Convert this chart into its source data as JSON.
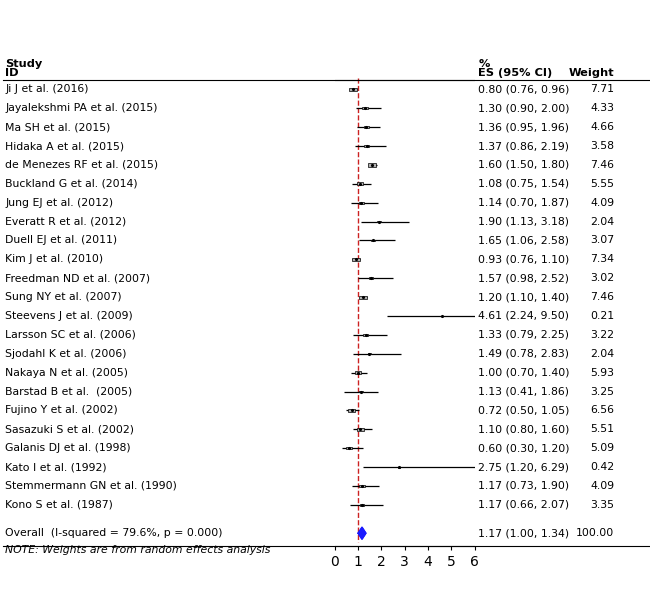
{
  "studies": [
    {
      "label": "Ji J et al. (2016)",
      "es": 0.8,
      "ci_lo": 0.76,
      "ci_hi": 0.96,
      "weight": 7.71
    },
    {
      "label": "Jayalekshmi PA et al. (2015)",
      "es": 1.3,
      "ci_lo": 0.9,
      "ci_hi": 2.0,
      "weight": 4.33
    },
    {
      "label": "Ma SH et al. (2015)",
      "es": 1.36,
      "ci_lo": 0.95,
      "ci_hi": 1.96,
      "weight": 4.66
    },
    {
      "label": "Hidaka A et al. (2015)",
      "es": 1.37,
      "ci_lo": 0.86,
      "ci_hi": 2.19,
      "weight": 3.58
    },
    {
      "label": "de Menezes RF et al. (2015)",
      "es": 1.6,
      "ci_lo": 1.5,
      "ci_hi": 1.8,
      "weight": 7.46
    },
    {
      "label": "Buckland G et al. (2014)",
      "es": 1.08,
      "ci_lo": 0.75,
      "ci_hi": 1.54,
      "weight": 5.55
    },
    {
      "label": "Jung EJ et al. (2012)",
      "es": 1.14,
      "ci_lo": 0.7,
      "ci_hi": 1.87,
      "weight": 4.09
    },
    {
      "label": "Everatt R et al. (2012)",
      "es": 1.9,
      "ci_lo": 1.13,
      "ci_hi": 3.18,
      "weight": 2.04
    },
    {
      "label": "Duell EJ et al. (2011)",
      "es": 1.65,
      "ci_lo": 1.06,
      "ci_hi": 2.58,
      "weight": 3.07
    },
    {
      "label": "Kim J et al. (2010)",
      "es": 0.93,
      "ci_lo": 0.76,
      "ci_hi": 1.1,
      "weight": 7.34
    },
    {
      "label": "Freedman ND et al. (2007)",
      "es": 1.57,
      "ci_lo": 0.98,
      "ci_hi": 2.52,
      "weight": 3.02
    },
    {
      "label": "Sung NY et al. (2007)",
      "es": 1.2,
      "ci_lo": 1.1,
      "ci_hi": 1.4,
      "weight": 7.46
    },
    {
      "label": "Steevens J et al. (2009)",
      "es": 4.61,
      "ci_lo": 2.24,
      "ci_hi": 9.5,
      "weight": 0.21
    },
    {
      "label": "Larsson SC et al. (2006)",
      "es": 1.33,
      "ci_lo": 0.79,
      "ci_hi": 2.25,
      "weight": 3.22
    },
    {
      "label": "Sjodahl K et al. (2006)",
      "es": 1.49,
      "ci_lo": 0.78,
      "ci_hi": 2.83,
      "weight": 2.04
    },
    {
      "label": "Nakaya N et al. (2005)",
      "es": 1.0,
      "ci_lo": 0.7,
      "ci_hi": 1.4,
      "weight": 5.93
    },
    {
      "label": "Barstad B et al.  (2005)",
      "es": 1.13,
      "ci_lo": 0.41,
      "ci_hi": 1.86,
      "weight": 3.25
    },
    {
      "label": "Fujino Y et al. (2002)",
      "es": 0.72,
      "ci_lo": 0.5,
      "ci_hi": 1.05,
      "weight": 6.56
    },
    {
      "label": "Sasazuki S et al. (2002)",
      "es": 1.1,
      "ci_lo": 0.8,
      "ci_hi": 1.6,
      "weight": 5.51
    },
    {
      "label": "Galanis DJ et al. (1998)",
      "es": 0.6,
      "ci_lo": 0.3,
      "ci_hi": 1.2,
      "weight": 5.09
    },
    {
      "label": "Kato I et al. (1992)",
      "es": 2.75,
      "ci_lo": 1.2,
      "ci_hi": 6.29,
      "weight": 0.42
    },
    {
      "label": "Stemmermann GN et al. (1990)",
      "es": 1.17,
      "ci_lo": 0.73,
      "ci_hi": 1.9,
      "weight": 4.09
    },
    {
      "label": "Kono S et al. (1987)",
      "es": 1.17,
      "ci_lo": 0.66,
      "ci_hi": 2.07,
      "weight": 3.35
    }
  ],
  "overall": {
    "label": "Overall  (I-squared = 79.6%, p = 0.000)",
    "es": 1.17,
    "ci_lo": 1.0,
    "ci_hi": 1.34,
    "weight": 100.0
  },
  "note": "NOTE: Weights are from random effects analysis",
  "header_study": "Study",
  "header_id": "ID",
  "header_pct": "%",
  "header_es": "ES (95% CI)",
  "header_weight": "Weight",
  "xmin": 0,
  "xmax": 6,
  "xticks": [
    0,
    1,
    2,
    3,
    4,
    5,
    6
  ],
  "ref_line": 1.0,
  "box_color": "#b0b0b0",
  "ci_color": "#000000",
  "overall_color": "#1a1aff",
  "ref_line_color": "#cc2222",
  "text_color": "#000000",
  "bg_color": "#ffffff",
  "label_fontsize": 7.8,
  "header_fontsize": 8.2,
  "tick_fontsize": 9.5
}
